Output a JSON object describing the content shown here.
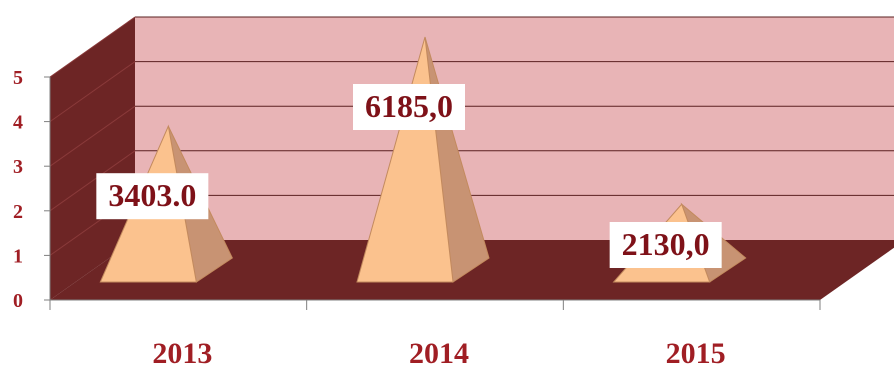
{
  "chart_data": {
    "type": "bar",
    "subtype": "3d-pyramid",
    "categories": [
      "2013",
      "2014",
      "2015"
    ],
    "values": [
      3,
      5,
      1.25
    ],
    "data_labels": [
      "3403.0",
      "6185,0",
      "2130,0"
    ],
    "yticks": [
      "0",
      "1",
      "2",
      "3",
      "4",
      "5"
    ],
    "ylim": [
      0,
      5
    ],
    "grid": true,
    "colors": {
      "back_wall": "#e8b4b6",
      "side_wall": "#6d2525",
      "floor": "#6d2525",
      "pyramid_front": "#fbc28e",
      "pyramid_side": "#c89373",
      "pyramid_edge": "#c38a5e",
      "text": "#a01e24",
      "label_text": "#7e1118"
    }
  }
}
